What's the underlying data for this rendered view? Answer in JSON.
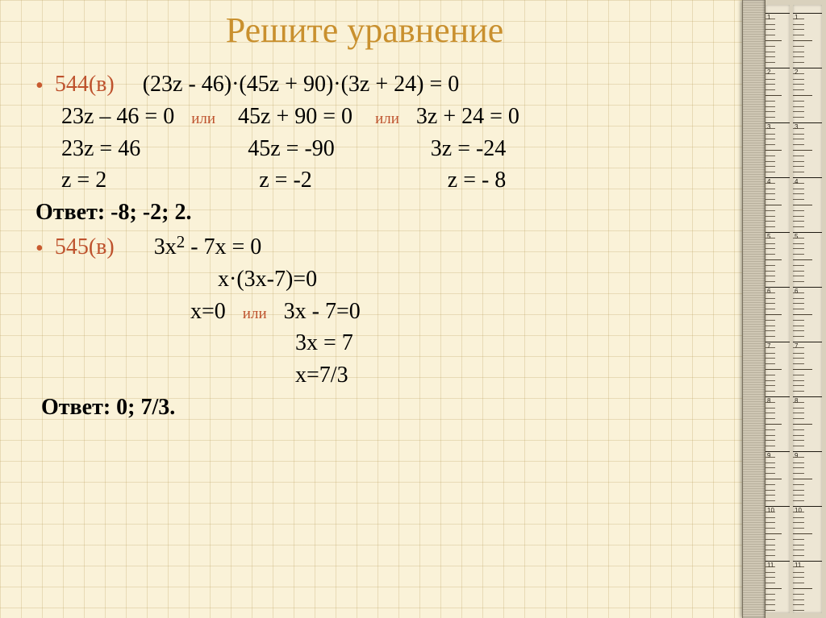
{
  "title": {
    "text": "Решите уравнение",
    "color": "#c9902e",
    "fontsize": 44
  },
  "accent_color": "#be522d",
  "text_color": "#000000",
  "fontsize_main": 28,
  "fontsize_or": 19,
  "problems": {
    "p544": {
      "label": "544(в)",
      "eq": "(23z - 46)·(45z + 90)·(3z + 24) = 0",
      "cases": [
        {
          "a_lhs": "23z – 46 = 0",
          "b_lhs": "45z + 90 = 0",
          "c_lhs": "3z + 24 = 0"
        },
        {
          "a_lhs": "23z = 46",
          "b_lhs": "45z = -90",
          "c_lhs": "3z = -24"
        },
        {
          "a_lhs": "z = 2",
          "b_lhs": "z = -2",
          "c_lhs": "z = - 8"
        }
      ],
      "or_label": "или",
      "answer_label": "Ответ",
      "answer_value": "-8; -2; 2."
    },
    "p545": {
      "label": "545(в)",
      "eq": "3x",
      "eq_exp": "2",
      "eq_tail": " - 7x = 0",
      "steps": [
        "x·(3x-7)=0",
        {
          "left": "x=0",
          "or": "или",
          "right": "3x - 7=0"
        },
        "3x = 7",
        "x=7/3"
      ],
      "answer_label": "Ответ",
      "answer_value": "0; 7/3."
    }
  },
  "ruler": {
    "major_step": 68,
    "start_label": 1,
    "end_label": 11
  }
}
